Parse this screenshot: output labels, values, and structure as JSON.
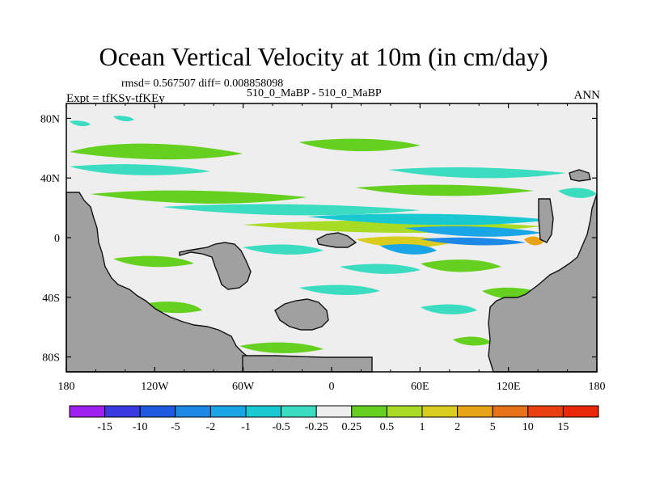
{
  "header": {
    "title": "Ocean Vertical Velocity at 10m (in cm/day)",
    "stats": "rmsd= 0.567507 diff= 0.008858098",
    "subtitle": "510_0_MaBP - 510_0_MaBP",
    "expt": "Expt = tfKSy-tfKEy",
    "season": "ANN"
  },
  "chart_data": {
    "type": "heatmap",
    "title": "Ocean Vertical Velocity at 10m (in cm/day)",
    "xlabel": "",
    "ylabel": "",
    "x_range": [
      -180,
      180
    ],
    "y_range": [
      -90,
      90
    ],
    "x_ticks": [
      "180",
      "120W",
      "60W",
      "0",
      "60E",
      "120E",
      "180"
    ],
    "x_tick_values": [
      -180,
      -120,
      -60,
      0,
      60,
      120,
      180
    ],
    "y_ticks": [
      "80N",
      "40N",
      "0",
      "40S",
      "80S"
    ],
    "y_tick_values": [
      80,
      40,
      0,
      -40,
      -80
    ],
    "colorbar": {
      "labels": [
        "-15",
        "-10",
        "-5",
        "-2",
        "-1",
        "-0.5",
        "-0.25",
        "0.25",
        "0.5",
        "1",
        "2",
        "5",
        "10",
        "15"
      ],
      "colors": [
        "#a020f0",
        "#3a3ae0",
        "#1f5ae0",
        "#1e88e5",
        "#1aa6e6",
        "#1ac8d2",
        "#3cdcc0",
        "#eeeeee",
        "#66d020",
        "#a8dc24",
        "#d8cc1e",
        "#e8a418",
        "#e87218",
        "#e84010",
        "#e82808"
      ]
    },
    "colors": {
      "land": "#a0a0a0",
      "ocean_neutral": "#eeeeee",
      "coast": "#111111"
    }
  }
}
